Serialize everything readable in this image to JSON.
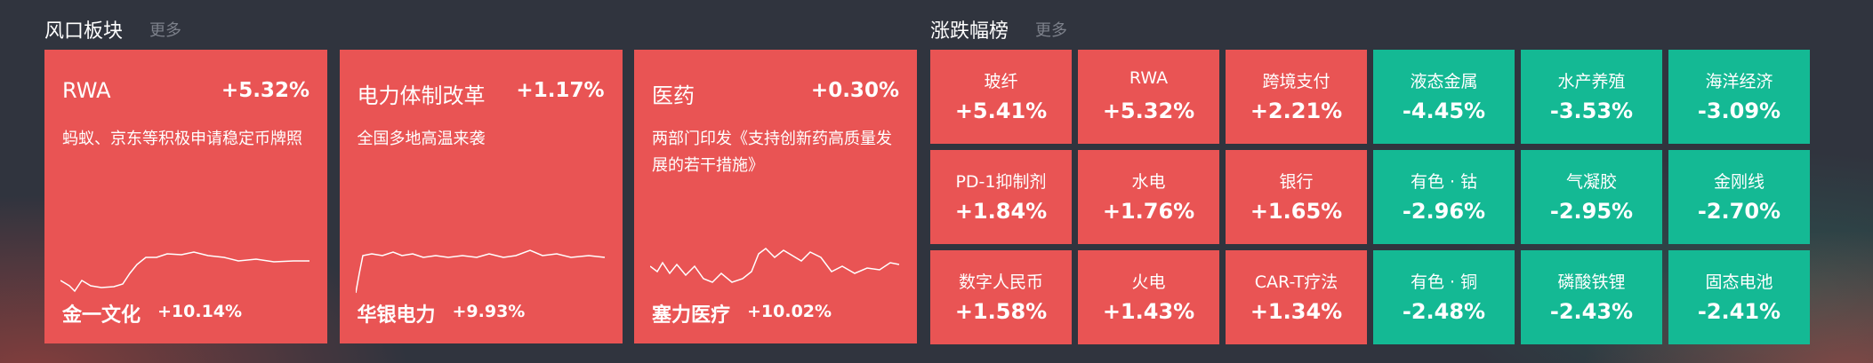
{
  "hot_sectors": {
    "title": "风口板块",
    "more": "更多",
    "cards": [
      {
        "name": "RWA",
        "change": "+5.32%",
        "news": "蚂蚁、京东等积极申请稳定币牌照",
        "stock": "金一文化",
        "stock_change": "+10.14%"
      },
      {
        "name": "电力体制改革",
        "change": "+1.17%",
        "news": "全国多地高温来袭",
        "stock": "华银电力",
        "stock_change": "+9.93%"
      },
      {
        "name": "医药",
        "change": "+0.30%",
        "news": "两部门印发《支持创新药高质量发展的若干措施》",
        "stock": "塞力医疗",
        "stock_change": "+10.02%"
      }
    ]
  },
  "ranking": {
    "title": "涨跌幅榜",
    "more": "更多",
    "cells": [
      {
        "name": "玻纤",
        "change": "+5.41%"
      },
      {
        "name": "RWA",
        "change": "+5.32%"
      },
      {
        "name": "跨境支付",
        "change": "+2.21%"
      },
      {
        "name": "液态金属",
        "change": "-4.45%"
      },
      {
        "name": "水产养殖",
        "change": "-3.53%"
      },
      {
        "name": "海洋经济",
        "change": "-3.09%"
      },
      {
        "name": "PD-1抑制剂",
        "change": "+1.84%"
      },
      {
        "name": "水电",
        "change": "+1.76%"
      },
      {
        "name": "银行",
        "change": "+1.65%"
      },
      {
        "name": "有色 · 钴",
        "change": "-2.96%"
      },
      {
        "name": "气凝胶",
        "change": "-2.95%"
      },
      {
        "name": "金刚线",
        "change": "-2.70%"
      },
      {
        "name": "数字人民币",
        "change": "+1.58%"
      },
      {
        "name": "火电",
        "change": "+1.43%"
      },
      {
        "name": "CAR-T疗法",
        "change": "+1.34%"
      },
      {
        "name": "有色 · 铜",
        "change": "-2.48%"
      },
      {
        "name": "磷酸铁锂",
        "change": "-2.43%"
      },
      {
        "name": "固态电池",
        "change": "-2.41%"
      }
    ]
  }
}
